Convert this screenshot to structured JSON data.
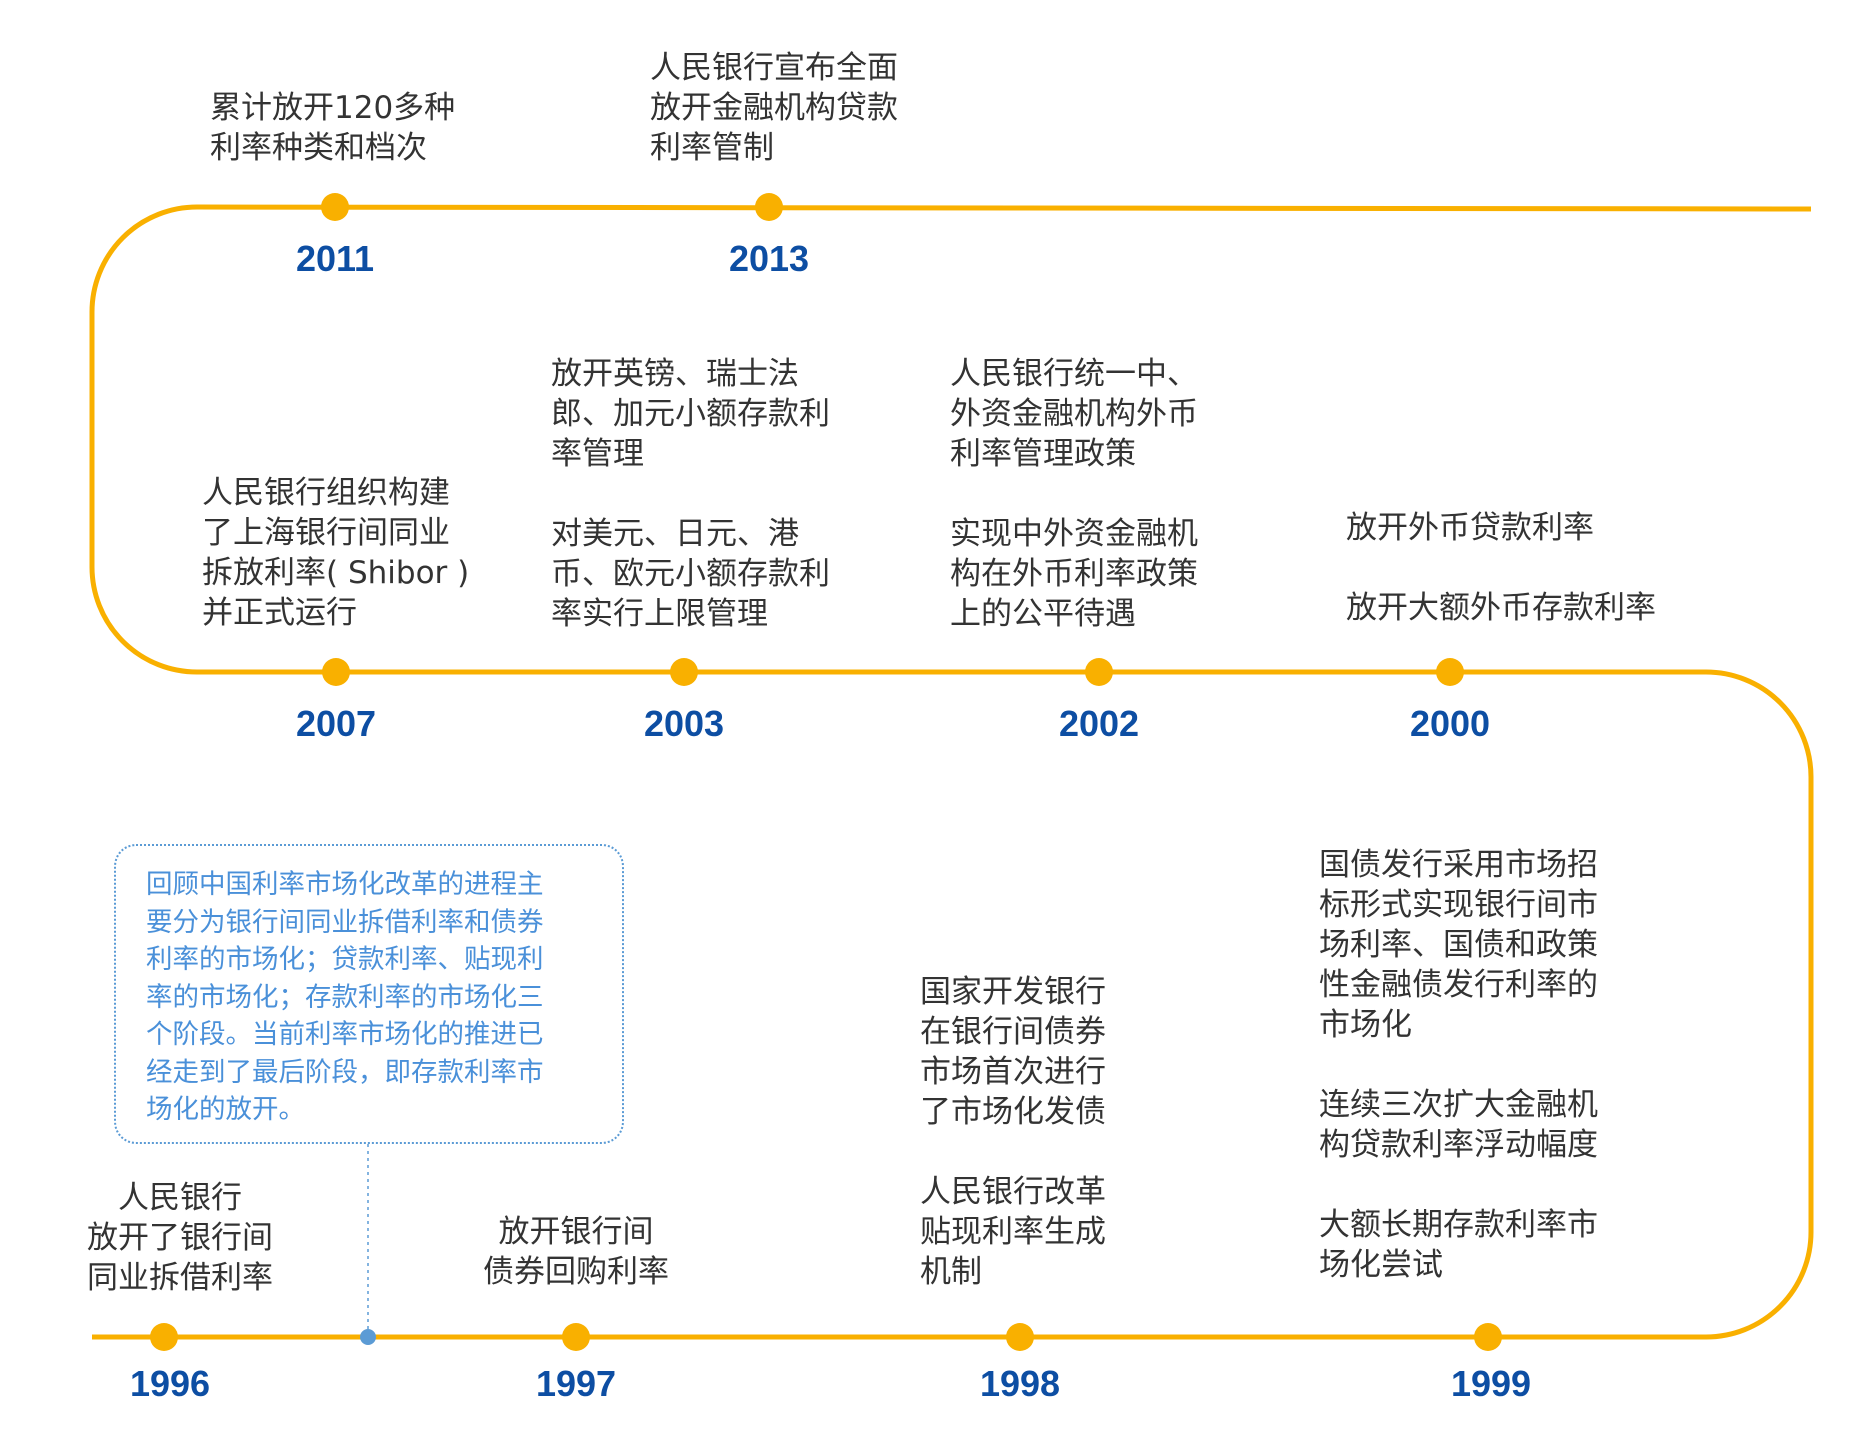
{
  "colors": {
    "track": "#f9b000",
    "year": "#0d4ea3",
    "text": "#333333",
    "note": "#4a90d9",
    "connector_dot": "#5b9bd5"
  },
  "events": [
    {
      "year": "2011",
      "blocks": [
        [
          "累计放开120多种",
          "利率种类和档次"
        ]
      ]
    },
    {
      "year": "2013",
      "blocks": [
        [
          "人民银行宣布全面",
          "放开金融机构贷款",
          "利率管制"
        ]
      ]
    },
    {
      "year": "2007",
      "blocks": [
        [
          "人民银行组织构建",
          "了上海银行间同业",
          "拆放利率( Shibor )",
          "并正式运行"
        ]
      ]
    },
    {
      "year": "2003",
      "blocks": [
        [
          "放开英镑、瑞士法",
          "郎、加元小额存款利",
          "率管理"
        ],
        [
          "对美元、日元、港",
          "币、欧元小额存款利",
          "率实行上限管理"
        ]
      ]
    },
    {
      "year": "2002",
      "blocks": [
        [
          "人民银行统一中、",
          "外资金融机构外币",
          "利率管理政策"
        ],
        [
          "实现中外资金融机",
          "构在外币利率政策",
          "上的公平待遇"
        ]
      ]
    },
    {
      "year": "2000",
      "blocks": [
        [
          "放开外币贷款利率"
        ],
        [
          "放开大额外币存款利率"
        ]
      ]
    },
    {
      "year": "1996",
      "blocks": [
        [
          "人民银行",
          "放开了银行间",
          "同业拆借利率"
        ]
      ]
    },
    {
      "year": "1997",
      "blocks": [
        [
          "放开银行间",
          "债券回购利率"
        ]
      ]
    },
    {
      "year": "1998",
      "blocks": [
        [
          "国家开发银行",
          "在银行间债券",
          "市场首次进行",
          "了市场化发债"
        ],
        [
          "人民银行改革",
          "贴现利率生成",
          "机制"
        ]
      ]
    },
    {
      "year": "1999",
      "blocks": [
        [
          "国债发行采用市场招",
          "标形式实现银行间市",
          "场利率、国债和政策",
          "性金融债发行利率的",
          "市场化"
        ],
        [
          "连续三次扩大金融机",
          "构贷款利率浮动幅度"
        ],
        [
          "大额长期存款利率市",
          "场化尝试"
        ]
      ]
    }
  ],
  "note": {
    "lines": [
      "回顾中国利率市场化改革的进程主",
      "要分为银行间同业拆借利率和债券",
      "利率的市场化；贷款利率、贴现利",
      "率的市场化；存款利率的市场化三",
      "个阶段。当前利率市场化的推进已",
      "经走到了最后阶段，即存款利率市",
      "场化的放开。"
    ]
  }
}
